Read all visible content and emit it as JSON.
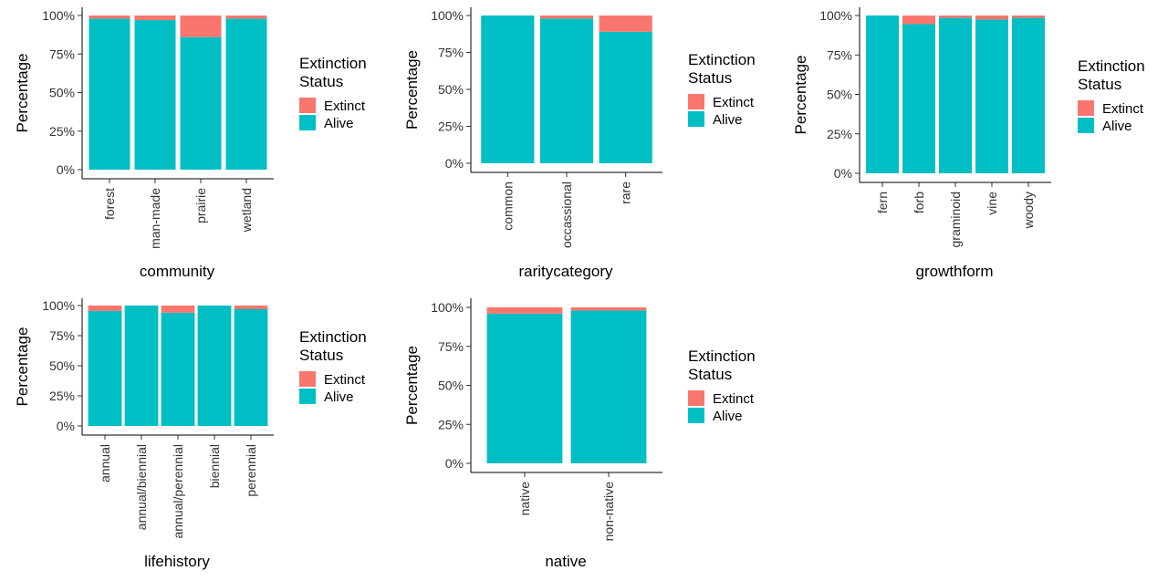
{
  "legend": {
    "title_line1": "Extinction",
    "title_line2": "Status",
    "items": [
      {
        "label": "Extinct",
        "color": "#F8766D"
      },
      {
        "label": "Alive",
        "color": "#00BFC4"
      }
    ]
  },
  "chart_data": [
    {
      "type": "bar",
      "stacked": "percent",
      "xlabel": "community",
      "ylabel": "Percentage",
      "yticks": [
        "0%",
        "25%",
        "50%",
        "75%",
        "100%"
      ],
      "ylim": [
        0,
        100
      ],
      "categories": [
        "forest",
        "man-made",
        "prairie",
        "wetland"
      ],
      "series": [
        {
          "name": "Extinct",
          "color": "#F8766D",
          "values": [
            2,
            3,
            14,
            2
          ]
        },
        {
          "name": "Alive",
          "color": "#00BFC4",
          "values": [
            98,
            97,
            86,
            98
          ]
        }
      ]
    },
    {
      "type": "bar",
      "stacked": "percent",
      "xlabel": "raritycategory",
      "ylabel": "Percentage",
      "yticks": [
        "0%",
        "25%",
        "50%",
        "75%",
        "100%"
      ],
      "ylim": [
        0,
        100
      ],
      "categories": [
        "common",
        "occassional",
        "rare"
      ],
      "series": [
        {
          "name": "Extinct",
          "color": "#F8766D",
          "values": [
            0,
            2,
            11
          ]
        },
        {
          "name": "Alive",
          "color": "#00BFC4",
          "values": [
            100,
            98,
            89
          ]
        }
      ]
    },
    {
      "type": "bar",
      "stacked": "percent",
      "xlabel": "growthform",
      "ylabel": "Percentage",
      "yticks": [
        "0%",
        "25%",
        "50%",
        "75%",
        "100%"
      ],
      "ylim": [
        0,
        100
      ],
      "categories": [
        "fern",
        "forb",
        "graminoid",
        "vine",
        "woody"
      ],
      "series": [
        {
          "name": "Extinct",
          "color": "#F8766D",
          "values": [
            0,
            5.5,
            1.5,
            2.5,
            1.5
          ]
        },
        {
          "name": "Alive",
          "color": "#00BFC4",
          "values": [
            100,
            94.5,
            98.5,
            97.5,
            98.5
          ]
        }
      ]
    },
    {
      "type": "bar",
      "stacked": "percent",
      "xlabel": "lifehistory",
      "ylabel": "Percentage",
      "yticks": [
        "0%",
        "25%",
        "50%",
        "75%",
        "100%"
      ],
      "ylim": [
        0,
        100
      ],
      "categories": [
        "annual",
        "annual/biennial",
        "annual/perennial",
        "biennial",
        "perennial"
      ],
      "series": [
        {
          "name": "Extinct",
          "color": "#F8766D",
          "values": [
            4.5,
            0,
            6,
            0,
            3
          ]
        },
        {
          "name": "Alive",
          "color": "#00BFC4",
          "values": [
            95.5,
            100,
            94,
            100,
            97
          ]
        }
      ]
    },
    {
      "type": "bar",
      "stacked": "percent",
      "xlabel": "native",
      "ylabel": "Percentage",
      "yticks": [
        "0%",
        "25%",
        "50%",
        "75%",
        "100%"
      ],
      "ylim": [
        0,
        100
      ],
      "categories": [
        "native",
        "non-native"
      ],
      "series": [
        {
          "name": "Extinct",
          "color": "#F8766D",
          "values": [
            4,
            2
          ]
        },
        {
          "name": "Alive",
          "color": "#00BFC4",
          "values": [
            96,
            98
          ]
        }
      ]
    }
  ]
}
